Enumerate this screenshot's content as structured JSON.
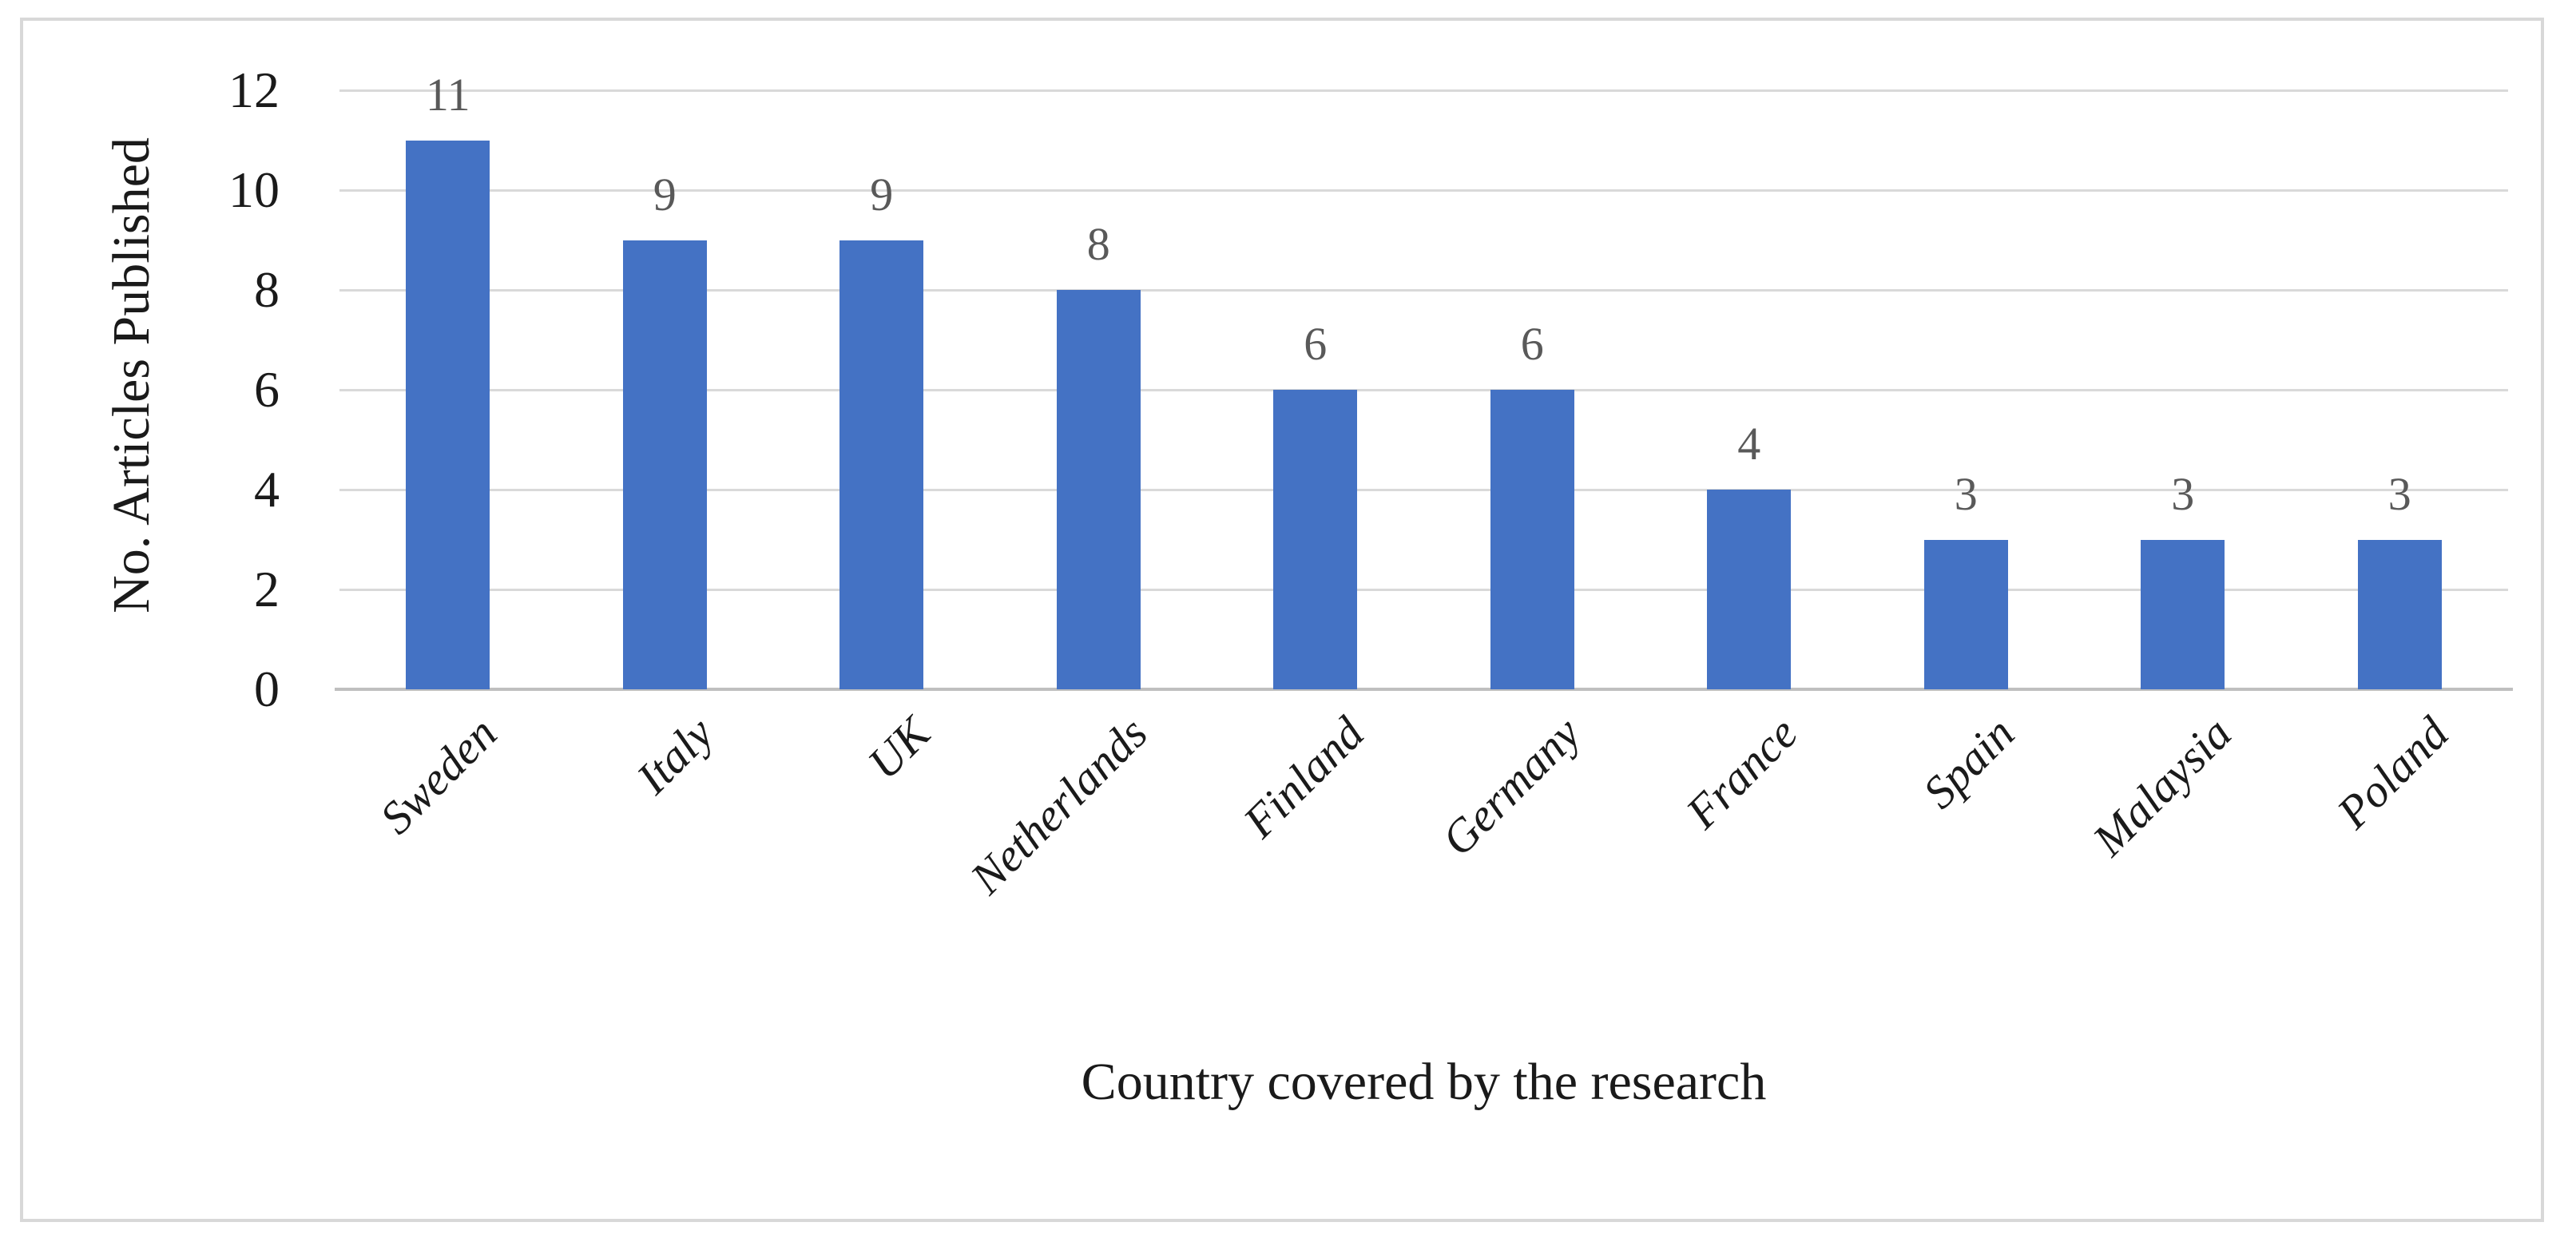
{
  "chart_data": {
    "type": "bar",
    "title": "",
    "categories": [
      "Sweden",
      "Italy",
      "UK",
      "Netherlands",
      "Finland",
      "Germany",
      "France",
      "Spain",
      "Malaysia",
      "Poland"
    ],
    "values": [
      11,
      9,
      9,
      8,
      6,
      6,
      4,
      3,
      3,
      3
    ],
    "data_labels": [
      "11",
      "9",
      "9",
      "8",
      "6",
      "6",
      "4",
      "3",
      "3",
      "3"
    ],
    "xlabel": "Country covered by the research",
    "ylabel": "No. Articles Published",
    "ylim": [
      0,
      12
    ],
    "yticks": [
      0,
      2,
      4,
      6,
      8,
      10,
      12
    ],
    "grid": "horizontal gridlines only",
    "legend_position": "none",
    "bar_color": "#4472C4",
    "gridline_color": "#D9D9D9",
    "axis_line_color": "#BFBFBF",
    "data_label_color": "#595959",
    "tick_label_color": "#1A1A1A",
    "frame_border_color": "#D8D8D8"
  }
}
